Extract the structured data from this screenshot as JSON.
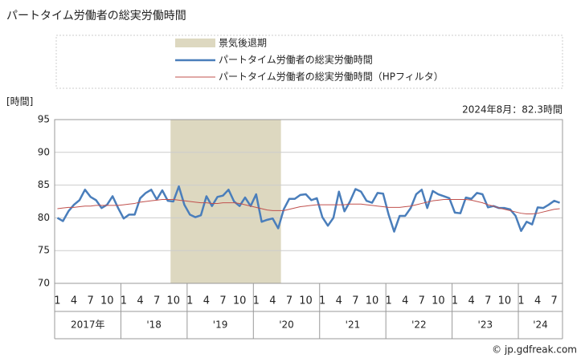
{
  "chart_data": {
    "type": "line",
    "title": "パートタイム労働者の総実労働時間",
    "y_label": "[時間]",
    "annotation": "2024年8月：82.3時間",
    "source": "© jp.gdfreak.com",
    "ylim": [
      70,
      95
    ],
    "yticks": [
      70,
      75,
      80,
      85,
      90,
      95
    ],
    "grid": true,
    "categories": [
      "1",
      null,
      null,
      "4",
      null,
      null,
      "7",
      null,
      null,
      "10",
      null,
      null,
      "1",
      null,
      null,
      "4",
      null,
      null,
      "7",
      null,
      null,
      "10",
      null,
      null,
      "1",
      null,
      null,
      "4",
      null,
      null,
      "7",
      null,
      null,
      "10",
      null,
      null,
      "1",
      null,
      null,
      "4",
      null,
      null,
      "7",
      null,
      null,
      "10",
      null,
      null,
      "1",
      null,
      null,
      "4",
      null,
      null,
      "7",
      null,
      null,
      "10",
      null,
      null,
      "1",
      null,
      null,
      "4",
      null,
      null,
      "7",
      null,
      null,
      "10",
      null,
      null,
      "1",
      null,
      null,
      "4",
      null,
      null,
      "7",
      null,
      null,
      "10",
      null,
      null,
      "1",
      null,
      null,
      "4",
      null,
      null,
      "7",
      null
    ],
    "year_labels": [
      "2017年",
      "'18",
      "'19",
      "'20",
      "'21",
      "'22",
      "'23",
      "'24"
    ],
    "shading": {
      "name": "景気後退期",
      "color": "#ddd8c0",
      "from": 21,
      "to": 40
    },
    "series": [
      {
        "name": "パートタイム労働者の総実労働時間",
        "color": "#4a7ebb",
        "width": 2.5,
        "values": [
          80.0,
          79.5,
          81.0,
          82.0,
          82.7,
          84.3,
          83.2,
          82.7,
          81.5,
          82.0,
          83.3,
          81.5,
          79.9,
          80.5,
          80.5,
          83.0,
          83.8,
          84.3,
          82.8,
          84.2,
          82.6,
          82.5,
          84.8,
          82.0,
          80.5,
          80.1,
          80.4,
          83.3,
          81.8,
          83.2,
          83.4,
          84.3,
          82.5,
          81.8,
          83.1,
          81.8,
          83.6,
          79.4,
          79.7,
          79.9,
          78.4,
          81.3,
          82.9,
          82.9,
          83.5,
          83.6,
          82.7,
          83.0,
          80.1,
          78.8,
          80.0,
          84.0,
          81.0,
          82.5,
          84.4,
          84.0,
          82.6,
          82.3,
          83.8,
          83.7,
          80.5,
          77.9,
          80.3,
          80.3,
          81.5,
          83.6,
          84.3,
          81.5,
          84.1,
          83.6,
          83.3,
          83.0,
          80.8,
          80.7,
          83.1,
          82.9,
          83.8,
          83.6,
          81.6,
          81.8,
          81.5,
          81.5,
          81.3,
          80.3,
          78.0,
          79.4,
          79.0,
          81.6,
          81.5,
          82.0,
          82.6,
          82.3
        ]
      },
      {
        "name": "パートタイム労働者の総実労働時間（HPフィルタ）",
        "color": "#c0504d",
        "width": 1,
        "values": [
          81.4,
          81.5,
          81.6,
          81.6,
          81.7,
          81.8,
          81.8,
          81.9,
          81.9,
          81.9,
          81.9,
          81.9,
          82.0,
          82.1,
          82.2,
          82.4,
          82.5,
          82.6,
          82.7,
          82.8,
          82.8,
          82.8,
          82.7,
          82.6,
          82.5,
          82.4,
          82.3,
          82.3,
          82.2,
          82.2,
          82.3,
          82.3,
          82.3,
          82.2,
          82.0,
          81.8,
          81.6,
          81.4,
          81.2,
          81.1,
          81.1,
          81.1,
          81.3,
          81.5,
          81.7,
          81.8,
          81.9,
          82.0,
          82.0,
          82.0,
          82.0,
          82.0,
          82.0,
          82.1,
          82.1,
          82.1,
          82.0,
          81.9,
          81.8,
          81.7,
          81.6,
          81.6,
          81.6,
          81.7,
          81.8,
          82.0,
          82.2,
          82.4,
          82.6,
          82.7,
          82.8,
          82.8,
          82.8,
          82.8,
          82.8,
          82.7,
          82.5,
          82.3,
          82.0,
          81.8,
          81.5,
          81.3,
          81.1,
          80.9,
          80.7,
          80.6,
          80.6,
          80.7,
          80.9,
          81.1,
          81.3,
          81.4
        ]
      }
    ]
  }
}
